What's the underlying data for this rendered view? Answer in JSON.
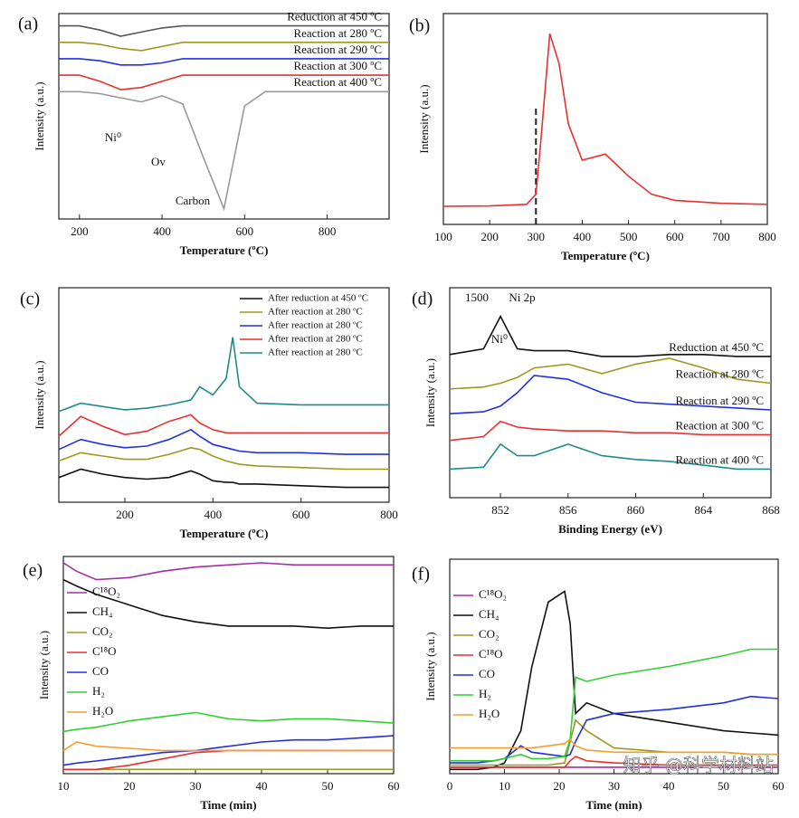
{
  "chart_data": [
    {
      "type": "line",
      "label": "(a)",
      "x_label": "Temperature (ºC)",
      "y_label": "Intensity (a.u.)",
      "legend": "inline",
      "x": [
        150,
        200,
        250,
        300,
        350,
        400,
        450,
        500,
        550,
        600,
        650,
        700,
        800,
        950
      ],
      "xlim": [
        150,
        950
      ],
      "xticks": [
        200,
        400,
        600,
        800
      ],
      "ylim": [
        0,
        10
      ],
      "annotations": [
        "Ni⁰",
        "Ov",
        "Carbon"
      ],
      "series": [
        {
          "name": "Reduction at 450 ºC",
          "color": "#555555",
          "values": [
            9.4,
            9.4,
            9.2,
            8.9,
            9.1,
            9.3,
            9.4,
            9.4,
            9.4,
            9.4,
            9.4,
            9.4,
            9.4,
            9.4
          ]
        },
        {
          "name": "Reaction at 280 ºC",
          "color": "#9a9a20",
          "values": [
            8.6,
            8.6,
            8.5,
            8.3,
            8.2,
            8.4,
            8.6,
            8.6,
            8.6,
            8.6,
            8.6,
            8.6,
            8.6,
            8.6
          ]
        },
        {
          "name": "Reaction at 290 ºC",
          "color": "#2030e0",
          "values": [
            7.8,
            7.8,
            7.7,
            7.5,
            7.5,
            7.6,
            7.8,
            7.8,
            7.8,
            7.8,
            7.8,
            7.8,
            7.8,
            7.8
          ]
        },
        {
          "name": "Reaction at 300 ºC",
          "color": "#e83030",
          "values": [
            7.0,
            7.0,
            6.7,
            6.3,
            6.4,
            6.7,
            7.0,
            7.0,
            7.0,
            7.0,
            7.0,
            7.0,
            7.0,
            7.0
          ]
        },
        {
          "name": "Reaction at 400 ºC",
          "color": "#999999",
          "values": [
            6.2,
            6.2,
            6.1,
            5.9,
            5.7,
            6.0,
            5.6,
            3.0,
            0.5,
            5.5,
            6.2,
            6.2,
            6.2,
            6.2
          ]
        }
      ]
    },
    {
      "type": "line",
      "label": "(b)",
      "x_label": "Temperature (ºC)",
      "y_label": "Intensity (a.u.)",
      "legend": "none",
      "x": [
        100,
        200,
        280,
        300,
        310,
        330,
        350,
        370,
        400,
        450,
        500,
        550,
        600,
        700,
        800
      ],
      "xlim": [
        100,
        800
      ],
      "xticks": [
        100,
        200,
        300,
        400,
        500,
        600,
        700,
        800
      ],
      "ylim": [
        0,
        10.5
      ],
      "vline": 300,
      "series": [
        {
          "name": "",
          "color": "#e83030",
          "values": [
            0.9,
            0.92,
            1.0,
            1.5,
            4.0,
            9.5,
            8.0,
            5.0,
            3.2,
            3.5,
            2.4,
            1.5,
            1.2,
            1.05,
            1.0
          ]
        }
      ]
    },
    {
      "type": "line",
      "label": "(c)",
      "x_label": "Temperature (ºC)",
      "y_label": "Intensity (a.u.)",
      "legend": "upper-right",
      "x": [
        50,
        100,
        150,
        200,
        250,
        300,
        350,
        370,
        400,
        430,
        445,
        460,
        500,
        600,
        700,
        800
      ],
      "xlim": [
        50,
        800
      ],
      "xticks": [
        200,
        400,
        600,
        800
      ],
      "ylim": [
        0,
        13
      ],
      "series": [
        {
          "name": "After reduction at 450 ºC",
          "color": "#111111",
          "values": [
            1.5,
            2.0,
            1.7,
            1.5,
            1.4,
            1.5,
            1.9,
            1.7,
            1.3,
            1.2,
            1.2,
            1.1,
            1.1,
            1.0,
            0.9,
            0.9
          ]
        },
        {
          "name": "After reaction at 280 ºC",
          "color": "#9a9a20",
          "values": [
            2.5,
            3.0,
            2.8,
            2.6,
            2.6,
            2.9,
            3.3,
            3.2,
            2.8,
            2.5,
            2.4,
            2.3,
            2.2,
            2.1,
            2.0,
            2.0
          ]
        },
        {
          "name": "After reaction at 280 ºC",
          "color": "#2030e0",
          "values": [
            3.2,
            3.8,
            3.5,
            3.3,
            3.4,
            3.8,
            4.4,
            4.0,
            3.5,
            3.3,
            3.2,
            3.1,
            3.0,
            3.0,
            2.9,
            2.9
          ]
        },
        {
          "name": "After reaction at 280 ºC",
          "color": "#e83030",
          "values": [
            4.0,
            5.2,
            4.6,
            4.1,
            4.3,
            4.9,
            5.3,
            4.8,
            4.4,
            4.2,
            4.2,
            4.2,
            4.2,
            4.2,
            4.2,
            4.2
          ]
        },
        {
          "name": "After reaction at 280 ºC",
          "color": "#208a8a",
          "values": [
            5.5,
            6.0,
            5.8,
            5.6,
            5.7,
            5.9,
            6.2,
            7.0,
            6.5,
            7.5,
            10.0,
            7.0,
            6.0,
            5.9,
            5.9,
            5.9
          ]
        }
      ]
    },
    {
      "type": "line",
      "label": "(d)",
      "x_label": "Binding Energy (eV)",
      "y_label": "Intensity (a.u.)",
      "legend": "inline",
      "texts": [
        "1500",
        "Ni 2p",
        "Ni⁰"
      ],
      "x": [
        849,
        851,
        852,
        853,
        854,
        856,
        858,
        860,
        862,
        864,
        866,
        868
      ],
      "xlim": [
        849,
        868
      ],
      "xticks": [
        852,
        856,
        860,
        864,
        868
      ],
      "ylim": [
        0,
        11
      ],
      "series": [
        {
          "name": "Reduction at 450 ºC",
          "color": "#111111",
          "values": [
            7.5,
            7.8,
            9.5,
            7.8,
            7.7,
            7.7,
            7.4,
            7.4,
            7.5,
            7.5,
            7.4,
            7.4
          ]
        },
        {
          "name": "Reaction at 280 ºC",
          "color": "#9a9a20",
          "values": [
            5.7,
            5.8,
            6.0,
            6.3,
            6.8,
            7.0,
            6.5,
            7.0,
            7.3,
            6.8,
            6.2,
            6.0
          ]
        },
        {
          "name": "Reaction at 290 ºC",
          "color": "#2030e0",
          "values": [
            4.4,
            4.5,
            4.8,
            5.5,
            6.4,
            6.2,
            5.5,
            5.0,
            4.9,
            4.8,
            4.7,
            4.6
          ]
        },
        {
          "name": "Reaction at 300 ºC",
          "color": "#e83030",
          "values": [
            3.0,
            3.2,
            4.0,
            3.7,
            3.6,
            3.5,
            3.5,
            3.4,
            3.4,
            3.3,
            3.3,
            3.3
          ]
        },
        {
          "name": "Reaction at 400 ºC",
          "color": "#208a8a",
          "values": [
            1.5,
            1.6,
            2.8,
            2.2,
            2.2,
            2.8,
            2.2,
            2.0,
            1.9,
            1.7,
            1.5,
            1.5
          ]
        }
      ]
    },
    {
      "type": "line",
      "label": "(e)",
      "x_label": "Time (min)",
      "y_label": "Intensity (a.u.)",
      "legend": "left",
      "x": [
        10,
        12,
        15,
        20,
        25,
        30,
        35,
        40,
        45,
        50,
        55,
        60
      ],
      "xlim": [
        10,
        60
      ],
      "xticks": [
        10,
        20,
        30,
        40,
        50,
        60
      ],
      "ylim": [
        0,
        10.3
      ],
      "series": [
        {
          "name": "C¹⁸O₂",
          "color": "#a030a0",
          "values": [
            10.0,
            9.6,
            9.2,
            9.3,
            9.6,
            9.8,
            9.9,
            10.0,
            9.9,
            9.9,
            9.9,
            9.9
          ]
        },
        {
          "name": "CH₄",
          "color": "#111111",
          "values": [
            9.2,
            8.9,
            8.5,
            8.0,
            7.5,
            7.2,
            7.0,
            7.0,
            7.0,
            6.9,
            7.0,
            7.0
          ]
        },
        {
          "name": "CO₂",
          "color": "#9a9a20",
          "values": [
            0.2,
            0.2,
            0.2,
            0.2,
            0.2,
            0.2,
            0.2,
            0.2,
            0.2,
            0.2,
            0.2,
            0.2
          ]
        },
        {
          "name": "C¹⁸O",
          "color": "#e83030",
          "values": [
            0.2,
            0.2,
            0.2,
            0.4,
            0.7,
            1.0,
            1.1,
            1.1,
            1.1,
            1.1,
            1.1,
            1.1
          ]
        },
        {
          "name": "CO",
          "color": "#2030e0",
          "values": [
            0.4,
            0.5,
            0.6,
            0.8,
            1.0,
            1.1,
            1.3,
            1.5,
            1.6,
            1.6,
            1.7,
            1.8
          ]
        },
        {
          "name": "H₂",
          "color": "#30d030",
          "values": [
            2.0,
            2.1,
            2.2,
            2.5,
            2.7,
            2.9,
            2.6,
            2.5,
            2.6,
            2.6,
            2.5,
            2.4
          ]
        },
        {
          "name": "H₂O",
          "color": "#f0a030",
          "values": [
            1.1,
            1.5,
            1.3,
            1.2,
            1.1,
            1.1,
            1.1,
            1.1,
            1.1,
            1.1,
            1.1,
            1.1
          ]
        }
      ]
    },
    {
      "type": "line",
      "label": "(f)",
      "x_label": "Time (min)",
      "y_label": "Intensity (a.u.)",
      "legend": "left",
      "watermark": "知乎 @科学材料站",
      "x": [
        0,
        5,
        8,
        10,
        13,
        15,
        18,
        21,
        22,
        23,
        25,
        30,
        40,
        50,
        55,
        60
      ],
      "xlim": [
        0,
        60
      ],
      "xticks": [
        0,
        10,
        20,
        30,
        40,
        50,
        60
      ],
      "ylim": [
        0,
        10
      ],
      "series": [
        {
          "name": "C¹⁸O₂",
          "color": "#a030a0",
          "values": [
            0.3,
            0.3,
            0.3,
            0.3,
            0.3,
            0.3,
            0.3,
            0.3,
            0.3,
            0.3,
            0.3,
            0.3,
            0.3,
            0.3,
            0.3,
            0.3
          ]
        },
        {
          "name": "CH₄",
          "color": "#111111",
          "values": [
            0.2,
            0.2,
            0.3,
            0.5,
            2.0,
            5.0,
            8.0,
            8.5,
            7.0,
            2.8,
            3.3,
            2.8,
            2.4,
            2.0,
            1.9,
            1.8
          ]
        },
        {
          "name": "CO₂",
          "color": "#9a9a20",
          "values": [
            0.4,
            0.4,
            0.4,
            0.4,
            0.4,
            0.4,
            0.4,
            0.5,
            1.5,
            2.5,
            2.0,
            1.2,
            1.0,
            1.0,
            0.9,
            0.9
          ]
        },
        {
          "name": "C¹⁸O",
          "color": "#e83030",
          "values": [
            0.3,
            0.3,
            0.3,
            0.3,
            0.3,
            0.3,
            0.3,
            0.3,
            0.6,
            0.8,
            0.6,
            0.5,
            0.4,
            0.4,
            0.4,
            0.4
          ]
        },
        {
          "name": "CO",
          "color": "#2030e0",
          "values": [
            0.5,
            0.5,
            0.6,
            0.7,
            1.3,
            1.0,
            0.9,
            0.8,
            0.9,
            1.5,
            2.5,
            2.8,
            3.0,
            3.3,
            3.6,
            3.5
          ]
        },
        {
          "name": "H₂",
          "color": "#30d030",
          "values": [
            0.6,
            0.6,
            0.6,
            0.7,
            0.9,
            0.7,
            0.7,
            0.8,
            1.6,
            4.5,
            4.3,
            4.6,
            5.0,
            5.5,
            5.8,
            5.8
          ]
        },
        {
          "name": "H₂O",
          "color": "#f0a030",
          "values": [
            1.2,
            1.2,
            1.2,
            1.2,
            1.2,
            1.2,
            1.3,
            1.4,
            1.6,
            1.3,
            1.1,
            1.0,
            1.0,
            1.0,
            0.9,
            0.9
          ]
        }
      ]
    }
  ]
}
